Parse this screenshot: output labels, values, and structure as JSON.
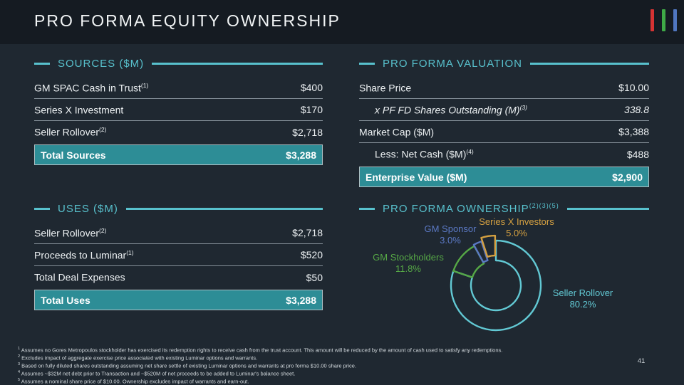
{
  "slide": {
    "title": "PRO FORMA EQUITY OWNERSHIP",
    "page_number": "41"
  },
  "logo": {
    "bar_colors": {
      "red": "#d63333",
      "green": "#3faa47",
      "blue": "#5076c0"
    }
  },
  "colors": {
    "accent_teal": "#58c1cd",
    "highlight_row": "#2d8d96",
    "background": "#1f2831",
    "topbar": "#151b22"
  },
  "sources": {
    "heading": "SOURCES ($M)",
    "rows": [
      {
        "label": "GM SPAC Cash in Trust",
        "sup": "(1)",
        "value": "$400"
      },
      {
        "label": "Series X Investment",
        "sup": "",
        "value": "$170"
      },
      {
        "label": "Seller Rollover",
        "sup": "(2)",
        "value": "$2,718"
      }
    ],
    "total": {
      "label": "Total Sources",
      "value": "$3,288"
    }
  },
  "valuation": {
    "heading": "PRO FORMA VALUATION",
    "rows": [
      {
        "label": "Share Price",
        "sup": "",
        "value": "$10.00"
      },
      {
        "label": "x PF FD Shares Outstanding (M)",
        "sup": "(3)",
        "value": "338.8"
      },
      {
        "label": "Market Cap ($M)",
        "sup": "",
        "value": "$3,388"
      },
      {
        "label": "Less: Net Cash ($M)",
        "sup": "(4)",
        "value": "$488"
      }
    ],
    "total": {
      "label": "Enterprise Value ($M)",
      "value": "$2,900"
    }
  },
  "uses": {
    "heading": "USES ($M)",
    "rows": [
      {
        "label": "Seller Rollover",
        "sup": "(2)",
        "value": "$2,718"
      },
      {
        "label": "Proceeds to Luminar",
        "sup": "(1)",
        "value": "$520"
      },
      {
        "label": "Total Deal Expenses",
        "sup": "",
        "value": "$50"
      }
    ],
    "total": {
      "label": "Total Uses",
      "value": "$3,288"
    }
  },
  "ownership": {
    "heading": "PRO FORMA OWNERSHIP",
    "heading_sup": "(2)(3)(5)"
  },
  "chart_data": {
    "type": "pie",
    "subtype": "donut-outline",
    "title": "PRO FORMA OWNERSHIP",
    "labels": [
      "Seller Rollover",
      "GM Stockholders",
      "GM Sponsor",
      "Series X Investors"
    ],
    "values": [
      80.2,
      11.8,
      3.0,
      5.0
    ],
    "colors": [
      "#62c9d4",
      "#56a846",
      "#5b79c4",
      "#d4a041"
    ],
    "explode": [
      0,
      0,
      2,
      7
    ],
    "start_angle_deg": 0,
    "direction": "clockwise",
    "legend_position": "callouts",
    "callouts": [
      {
        "name": "Seller Rollover",
        "pct": "80.2%"
      },
      {
        "name": "GM Stockholders",
        "pct": "11.8%"
      },
      {
        "name": "GM Sponsor",
        "pct": "3.0%"
      },
      {
        "name": "Series X Investors",
        "pct": "5.0%"
      }
    ]
  },
  "footnotes": [
    {
      "sup": "1",
      "text": " Assumes no Gores Metropoulos stockholder has exercised its redemption rights to receive cash from the trust account. This amount will be reduced by the amount of cash used to satisfy any redemptions."
    },
    {
      "sup": "2",
      "text": " Excludes impact of aggregate exercise price associated with existing Luminar options and warrants."
    },
    {
      "sup": "3",
      "text": " Based on fully diluted shares outstanding assuming net share settle of existing Luminar options and warrants at pro forma $10.00 share price."
    },
    {
      "sup": "4",
      "text": " Assumes ~$32M net debt prior to Transaction and ~$520M of net proceeds to be added to Luminar's balance sheet."
    },
    {
      "sup": "5",
      "text": " Assumes a nominal share price of $10.00. Ownership excludes impact of warrants and earn-out."
    }
  ]
}
